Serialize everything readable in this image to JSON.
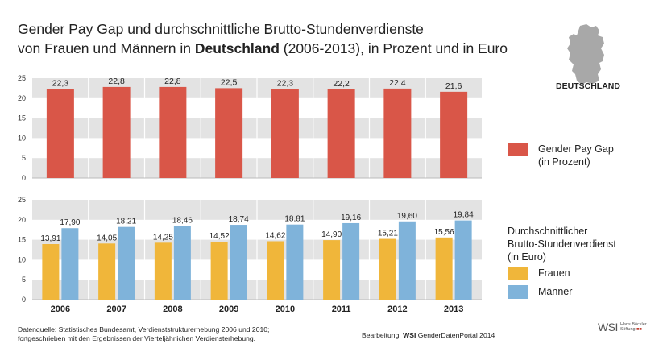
{
  "title": {
    "line1": "Gender Pay Gap und durchschnittliche Brutto-Stundenverdienste",
    "line2_prefix": "von Frauen und Männern in ",
    "line2_bold": "Deutschland",
    "line2_suffix": " (2006-2013), in Prozent und in Euro"
  },
  "map": {
    "label": "DEUTSCHLAND",
    "icon": "germany-map-icon"
  },
  "legend": {
    "gap_label_line1": "Gender Pay Gap",
    "gap_label_line2": "(in Prozent)",
    "earnings_heading_line1": "Durchschnittlicher",
    "earnings_heading_line2": "Brutto-Stundenverdienst",
    "earnings_heading_line3": "(in Euro)",
    "women_label": "Frauen",
    "men_label": "Männer"
  },
  "footer": {
    "source_line1": "Datenquelle: Statistisches Bundesamt,  Verdienststrukturerhebung 2006 und 2010;",
    "source_line2": "fortgeschrieben mit den Ergebnissen der Vierteljährlichen Verdiensterhebung.",
    "credit_prefix": "Bearbeitung: ",
    "credit_bold": "WSI",
    "credit_suffix": " GenderDatenPortal 2014",
    "logo_main": "WSI",
    "logo_line1": "Hans Böckler",
    "logo_line2": "Stiftung"
  },
  "colors": {
    "gap": "#d95648",
    "women": "#f0b63a",
    "men": "#7fb3da",
    "band": "#e3e3e3"
  },
  "chart_data": [
    {
      "type": "bar",
      "categories": [
        "2006",
        "2007",
        "2008",
        "2009",
        "2010",
        "2011",
        "2012",
        "2013"
      ],
      "series": [
        {
          "name": "Gender Pay Gap",
          "values": [
            22.3,
            22.8,
            22.8,
            22.5,
            22.3,
            22.2,
            22.4,
            21.6
          ],
          "labels": [
            "22,3",
            "22,8",
            "22,8",
            "22,5",
            "22,3",
            "22,2",
            "22,4",
            "21,6"
          ]
        }
      ],
      "yticks": [
        "0",
        "5",
        "10",
        "15",
        "20",
        "25"
      ],
      "ylim": [
        0,
        25
      ]
    },
    {
      "type": "bar",
      "categories": [
        "2006",
        "2007",
        "2008",
        "2009",
        "2010",
        "2011",
        "2012",
        "2013"
      ],
      "series": [
        {
          "name": "Frauen",
          "values": [
            13.91,
            14.05,
            14.25,
            14.52,
            14.62,
            14.9,
            15.21,
            15.56
          ],
          "labels": [
            "13,91",
            "14,05",
            "14,25",
            "14,52",
            "14,62",
            "14,90",
            "15,21",
            "15,56"
          ]
        },
        {
          "name": "Männer",
          "values": [
            17.9,
            18.21,
            18.46,
            18.74,
            18.81,
            19.16,
            19.6,
            19.84
          ],
          "labels": [
            "17,90",
            "18,21",
            "18,46",
            "18,74",
            "18,81",
            "19,16",
            "19,60",
            "19,84"
          ]
        }
      ],
      "yticks": [
        "0",
        "5",
        "10",
        "15",
        "20",
        "25"
      ],
      "ylim": [
        0,
        25
      ]
    }
  ]
}
